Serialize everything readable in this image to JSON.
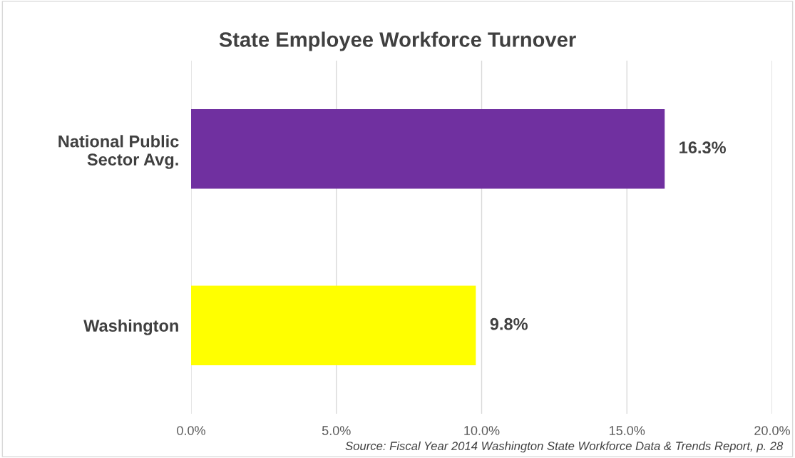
{
  "chart_data": {
    "type": "bar",
    "orientation": "horizontal",
    "title": "State Employee Workforce Turnover",
    "categories": [
      "National Public\nSector Avg.",
      "Washington"
    ],
    "values": [
      16.3,
      9.8
    ],
    "colors": [
      "#7030a0",
      "#ffff00"
    ],
    "value_labels": [
      "16.3%",
      "9.8%"
    ],
    "xlim": [
      0,
      20
    ],
    "xticks": [
      {
        "value": 0,
        "label": "0.0%"
      },
      {
        "value": 5,
        "label": "5.0%"
      },
      {
        "value": 10,
        "label": "10.0%"
      },
      {
        "value": 15,
        "label": "15.0%"
      },
      {
        "value": 20,
        "label": "20.0%"
      }
    ],
    "grid": "x",
    "annotations": [
      "Source: Fiscal Year 2014 Washington State Workforce Data & Trends Report, p. 28"
    ]
  }
}
